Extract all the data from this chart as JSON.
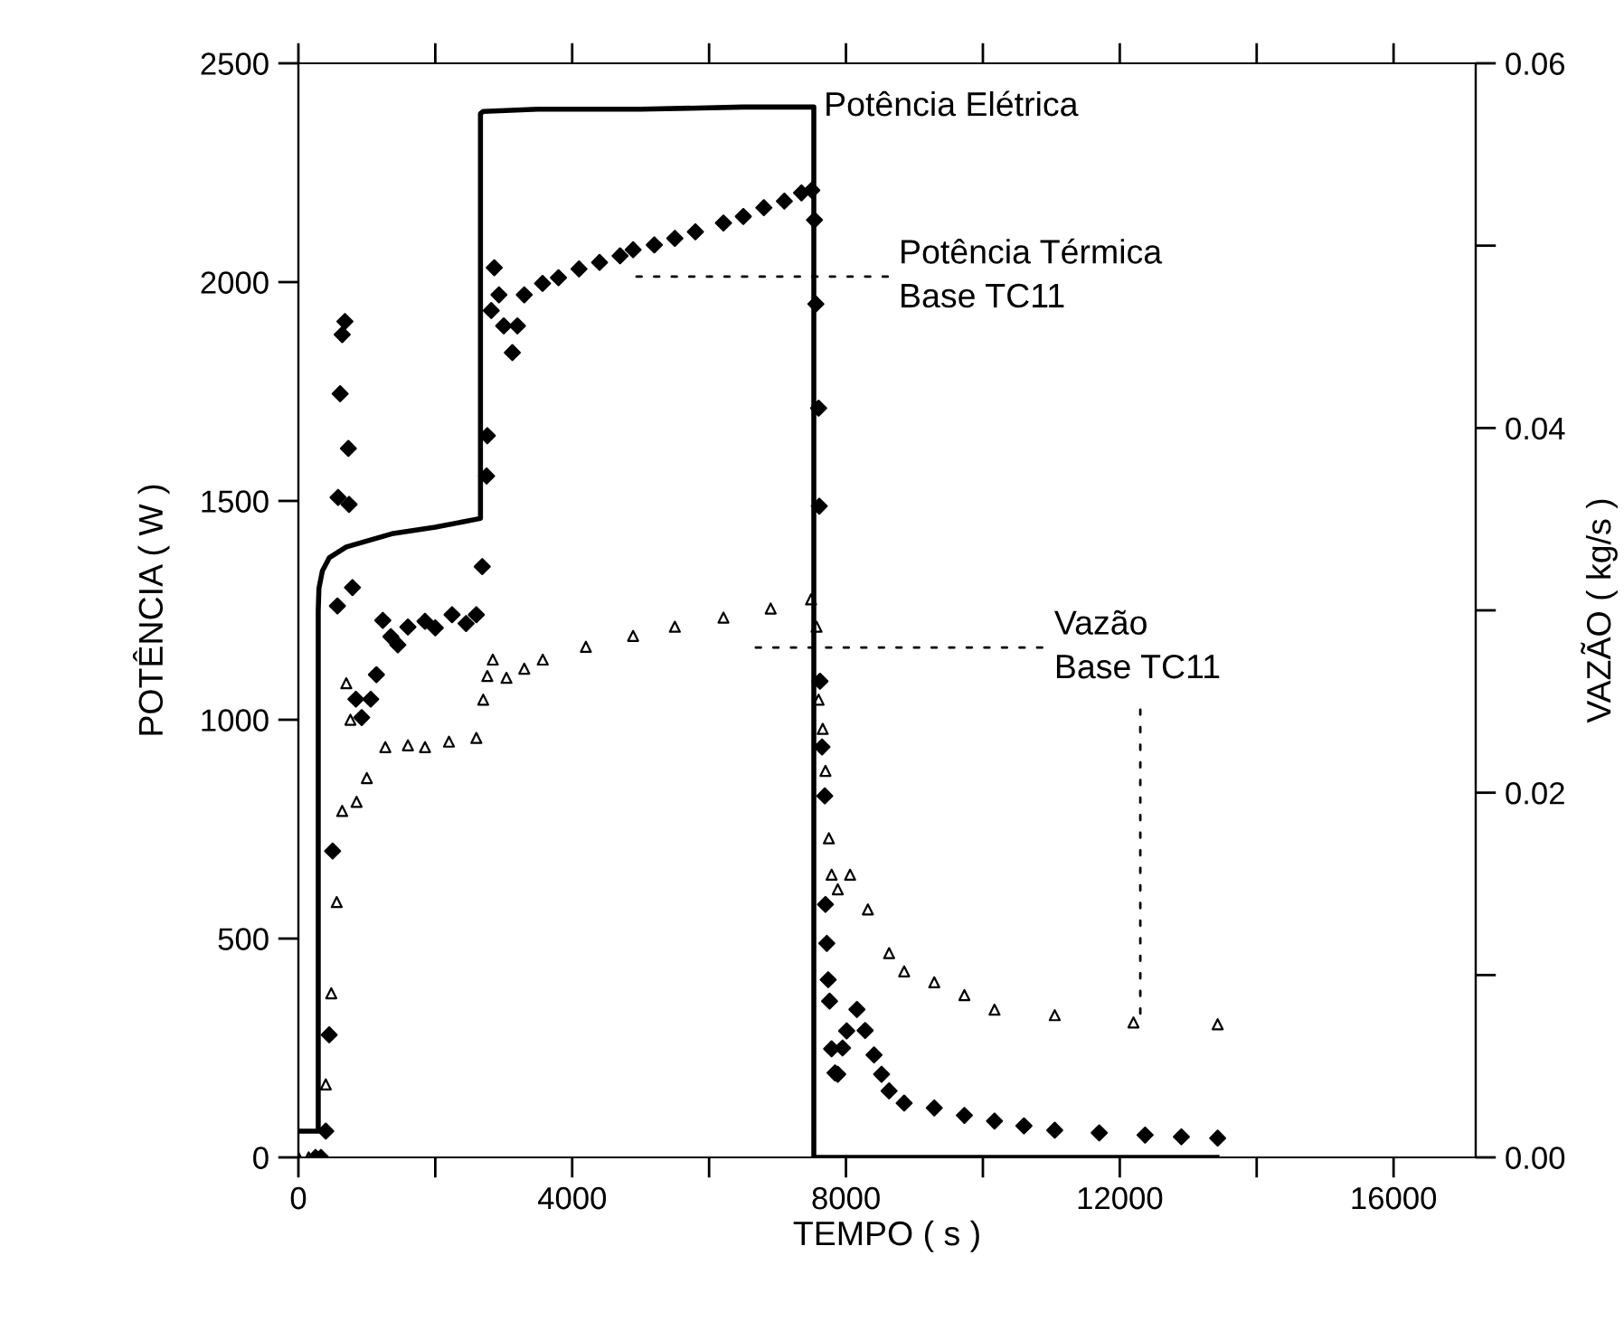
{
  "chart_data": {
    "type": "scatter",
    "xlabel": "TEMPO ( s )",
    "ylabel": "POTÊNCIA ( W )",
    "y2label": "VAZÃO ( kg/s )",
    "xlim": [
      0,
      17200
    ],
    "xticks": [
      0,
      {
        "value": 2000,
        "label": null
      },
      4000,
      {
        "value": 6000,
        "label": null
      },
      8000,
      {
        "value": 10000,
        "label": null
      },
      12000,
      {
        "value": 14000,
        "label": null
      },
      16000
    ],
    "ylim": [
      0,
      2500
    ],
    "yticks": [
      0,
      500,
      1000,
      1500,
      2000,
      2500
    ],
    "y2lim": [
      0,
      0.06
    ],
    "y2ticks": [
      {
        "value": 0,
        "label": "0.00"
      },
      {
        "value": 0.01,
        "label": null
      },
      {
        "value": 0.02,
        "label": "0.02"
      },
      {
        "value": 0.03,
        "label": null
      },
      {
        "value": 0.04,
        "label": "0.04"
      },
      {
        "value": 0.05,
        "label": null
      },
      {
        "value": 0.06,
        "label": "0.06"
      }
    ],
    "grid": false,
    "series": [
      {
        "type": "line",
        "color": "#000000",
        "marker": "none",
        "line_style": "solid",
        "x": [
          0,
          290,
          290,
          300,
          350,
          450,
          700,
          1365,
          2000,
          2660,
          2660,
          2700,
          3500,
          5000,
          6500,
          7530,
          7530,
          13420
        ],
        "values": [
          60,
          60,
          1250,
          1300,
          1340,
          1370,
          1395,
          1425,
          1440,
          1460,
          2385,
          2390,
          2395,
          2395,
          2400,
          2400,
          0,
          0
        ]
      },
      {
        "color": "#000000",
        "marker": "diamond",
        "x": [
          250,
          330,
          400,
          450,
          500,
          570,
          580,
          610,
          640,
          680,
          730,
          740,
          790,
          840,
          925,
          1057,
          1140,
          1233,
          1350,
          1453,
          1600,
          1850,
          2000,
          2245,
          2450,
          2600,
          2686,
          2750,
          2760,
          2818,
          2862,
          2930,
          3000,
          3126,
          3200,
          3300,
          3567,
          3800,
          4100,
          4400,
          4700,
          4890,
          5200,
          5500,
          5800,
          6210,
          6500,
          6800,
          7100,
          7350,
          7500,
          7540,
          7560,
          7600,
          7610,
          7620,
          7650,
          7690,
          7700,
          7720,
          7740,
          7760,
          7790,
          7840,
          7880,
          7950,
          8010,
          8160,
          8280,
          8410,
          8520,
          8630,
          8850,
          9290,
          9730,
          10170,
          10600,
          11050,
          11700,
          12370,
          12900,
          13430
        ],
        "values": [
          0,
          0,
          60,
          280,
          700,
          1260,
          1508,
          1745,
          1880,
          1910,
          1620,
          1492,
          1302,
          1047,
          1005,
          1047,
          1103,
          1227,
          1190,
          1171,
          1212,
          1225,
          1210,
          1240,
          1220,
          1240,
          1350,
          1557,
          1649,
          1935,
          2033,
          1971,
          1900,
          1839,
          1900,
          1971,
          1997,
          2010,
          2030,
          2045,
          2060,
          2074,
          2085,
          2100,
          2115,
          2135,
          2150,
          2170,
          2185,
          2204,
          2210,
          2142,
          1950,
          1712,
          1488,
          1088,
          938,
          826,
          578,
          489,
          406,
          357,
          248,
          193,
          190,
          250,
          289,
          338,
          290,
          234,
          190,
          152,
          124,
          113,
          96,
          83,
          72,
          62,
          56,
          51,
          47,
          44
        ]
      },
      {
        "axis": "y2",
        "color": "#000000",
        "marker": "triangle",
        "x": [
          0,
          150,
          400,
          480,
          560,
          640,
          700,
          760,
          850,
          1000,
          1270,
          1600,
          1850,
          2200,
          2600,
          2700,
          2760,
          2840,
          3040,
          3300,
          3570,
          4200,
          4890,
          5500,
          6210,
          6900,
          7490,
          7570,
          7600,
          7660,
          7700,
          7750,
          7790,
          7880,
          8060,
          8320,
          8630,
          8850,
          9290,
          9730,
          10170,
          11050,
          12200,
          13430
        ],
        "values": [
          0,
          0,
          0.004,
          0.009,
          0.014,
          0.019,
          0.026,
          0.024,
          0.0195,
          0.0208,
          0.0225,
          0.0226,
          0.0225,
          0.0228,
          0.023,
          0.0251,
          0.0264,
          0.0273,
          0.0263,
          0.0268,
          0.0273,
          0.028,
          0.0286,
          0.0291,
          0.0296,
          0.0301,
          0.0306,
          0.0291,
          0.0251,
          0.0235,
          0.0212,
          0.0175,
          0.0155,
          0.0147,
          0.0155,
          0.0136,
          0.0112,
          0.0102,
          0.0096,
          0.0089,
          0.0081,
          0.0078,
          0.0074,
          0.0073
        ]
      }
    ],
    "annotations": [
      {
        "text": "Potência Elétrica",
        "x": 7530,
        "y": 2400
      },
      "Potência Térmica\nBase TC11",
      {
        "text": "Vazão\nBase TC11",
        "x": 12300,
        "y": 300
      }
    ]
  }
}
